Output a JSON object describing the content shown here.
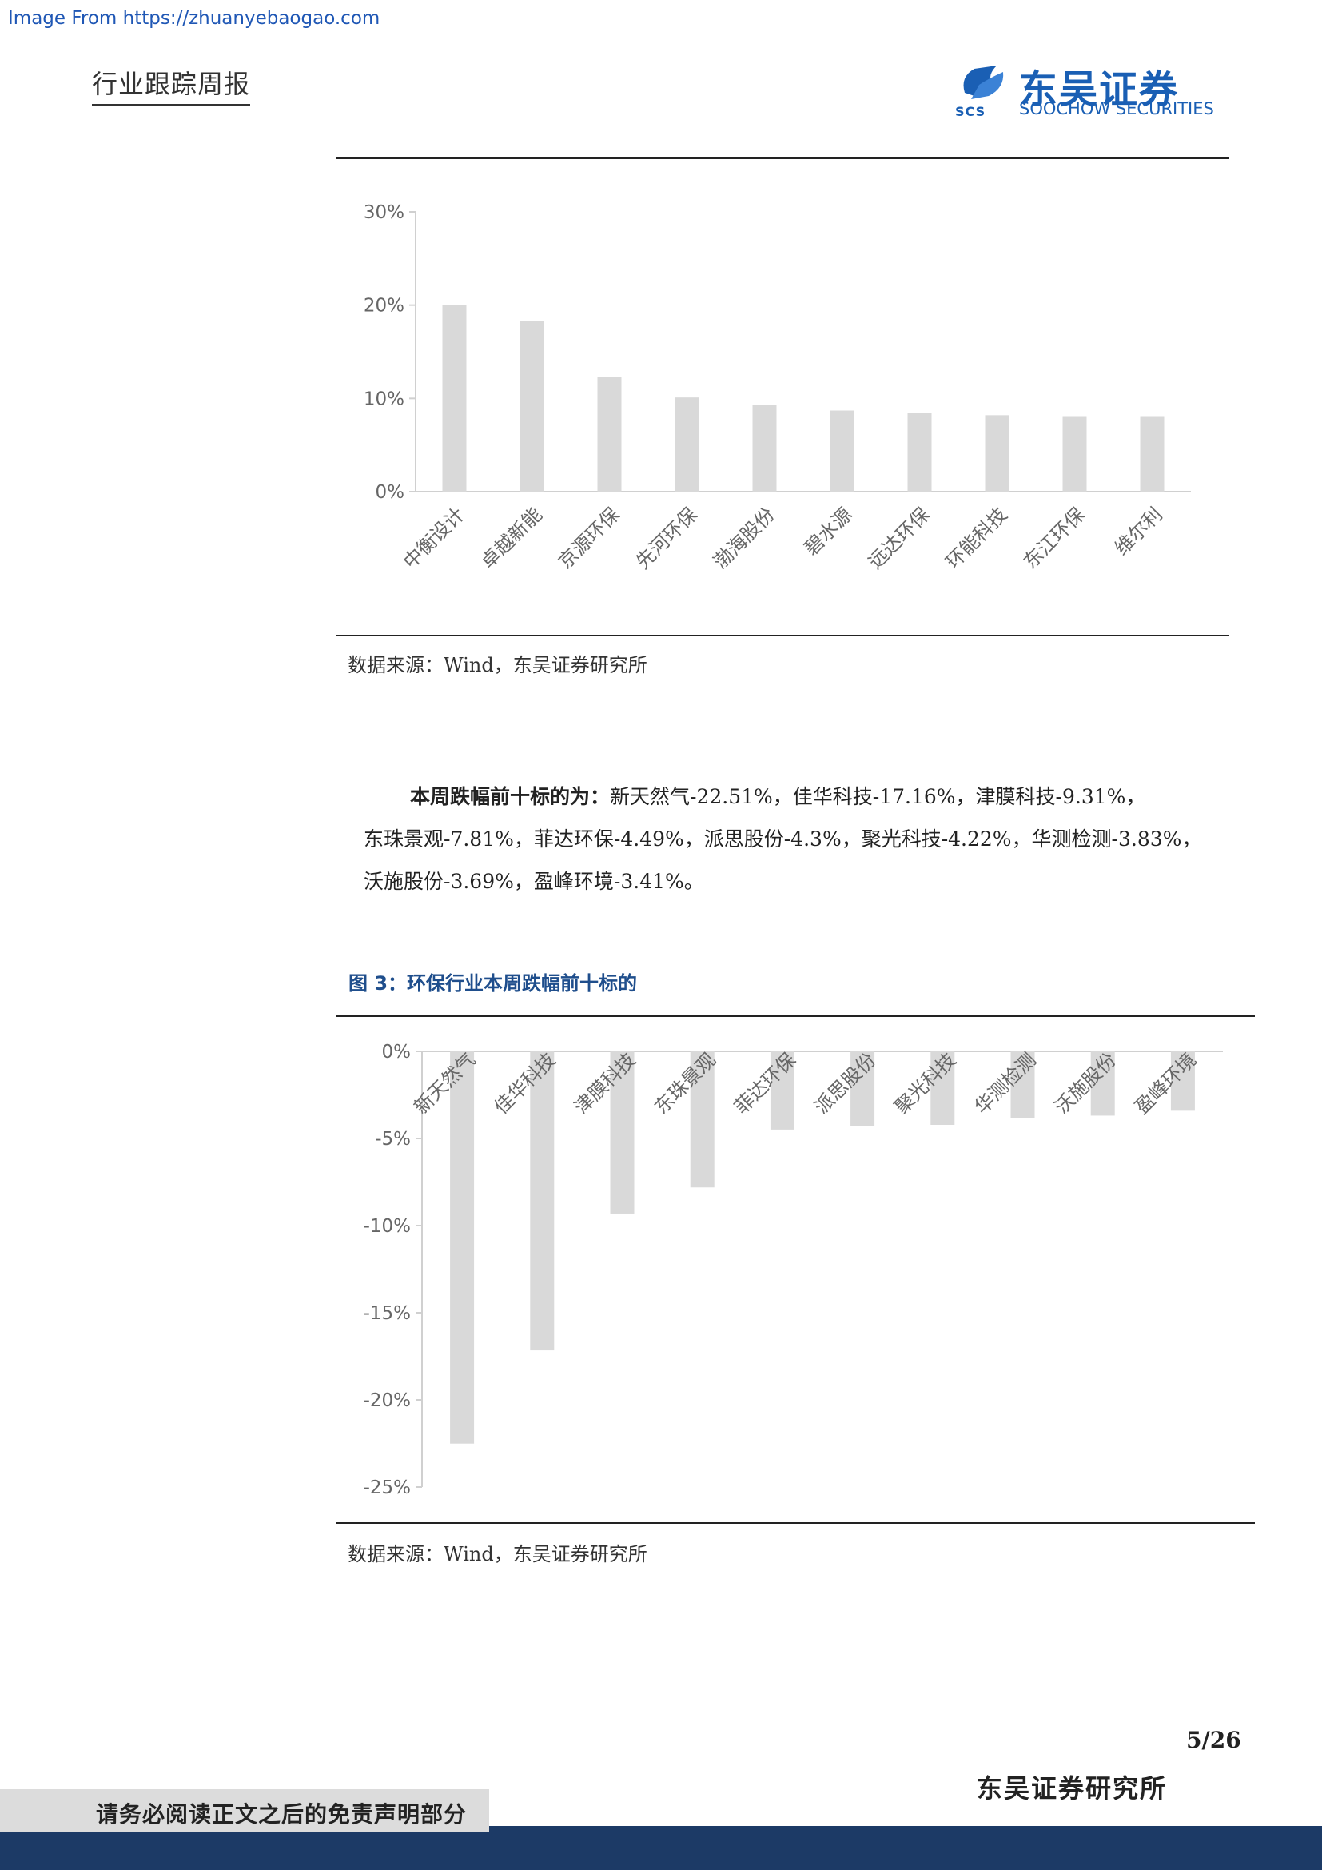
{
  "watermark": "Image From https://zhuanyebaogao.com",
  "header": {
    "title": "行业跟踪周报",
    "logo_cn": "东吴证券",
    "logo_en": "SOOCHOW SECURITIES",
    "logo_abbr": "SCS"
  },
  "chart_top_source": "数据来源：Wind，东吴证券研究所",
  "paragraph": {
    "lead": "本周跌幅前十标的为：",
    "line1": "新天然气-22.51%，佳华科技-17.16%，津膜科技-9.31%，",
    "line2": "东珠景观-7.81%，菲达环保-4.49%，派思股份-4.3%，聚光科技-4.22%，华测检测-3.83%，",
    "line3": "沃施股份-3.69%，盈峰环境-3.41%。"
  },
  "figure3_title": "图 3：环保行业本周跌幅前十标的",
  "chart_bottom_source": "数据来源：Wind，东吴证券研究所",
  "footer": {
    "page": "5/26",
    "institute": "东吴证券研究所",
    "disclaimer": "请务必阅读正文之后的免责声明部分"
  },
  "colors": {
    "bar": "#d9d9d9",
    "axis": "#d0d0d0",
    "tick_text": "#666666",
    "accent": "#1a5fb4",
    "footer_bar": "#1c3a66"
  },
  "chart_data": [
    {
      "type": "bar",
      "categories": [
        "中衡设计",
        "卓越新能",
        "京源环保",
        "先河环保",
        "渤海股份",
        "碧水源",
        "远达环保",
        "环能科技",
        "东江环保",
        "维尔利"
      ],
      "values": [
        20.0,
        18.3,
        12.3,
        10.1,
        9.3,
        8.7,
        8.4,
        8.2,
        8.1,
        8.1
      ],
      "ylim": [
        0,
        30
      ],
      "yticks": [
        "0%",
        "10%",
        "20%",
        "30%"
      ],
      "ytick_values": [
        0,
        10,
        20,
        30
      ],
      "grid": false
    },
    {
      "type": "bar",
      "categories": [
        "新天然气",
        "佳华科技",
        "津膜科技",
        "东珠景观",
        "菲达环保",
        "派思股份",
        "聚光科技",
        "华测检测",
        "沃施股份",
        "盈峰环境"
      ],
      "values": [
        -22.51,
        -17.16,
        -9.31,
        -7.81,
        -4.49,
        -4.3,
        -4.22,
        -3.83,
        -3.69,
        -3.41
      ],
      "ylim": [
        -25,
        0
      ],
      "yticks": [
        "0%",
        "-5%",
        "-10%",
        "-15%",
        "-20%",
        "-25%"
      ],
      "ytick_values": [
        0,
        -5,
        -10,
        -15,
        -20,
        -25
      ],
      "grid": false
    }
  ]
}
